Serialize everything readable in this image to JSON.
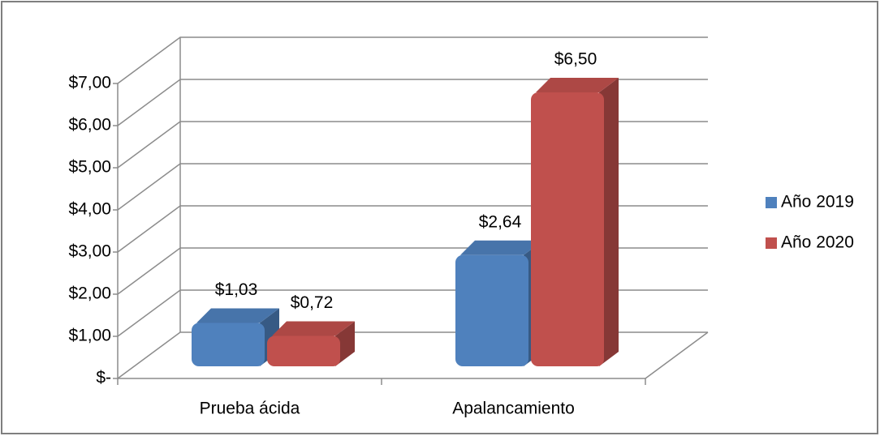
{
  "chart_data": {
    "type": "bar3d",
    "categories": [
      "Prueba ácida",
      "Apalancamiento"
    ],
    "series": [
      {
        "name": "Año 2019",
        "color": "#4f81bd",
        "values": [
          1.03,
          2.64
        ],
        "value_labels": [
          "$1,03",
          "$2,64"
        ]
      },
      {
        "name": "Año 2020",
        "color": "#c0504d",
        "values": [
          0.72,
          6.5
        ],
        "value_labels": [
          "$0,72",
          "$6,50"
        ]
      }
    ],
    "ylim": [
      0,
      7
    ],
    "yticks": [
      {
        "value": 0,
        "label": "$-"
      },
      {
        "value": 1,
        "label": "$1,00"
      },
      {
        "value": 2,
        "label": "$2,00"
      },
      {
        "value": 3,
        "label": "$3,00"
      },
      {
        "value": 4,
        "label": "$4,00"
      },
      {
        "value": 5,
        "label": "$5,00"
      },
      {
        "value": 6,
        "label": "$6,00"
      },
      {
        "value": 7,
        "label": "$7,00"
      }
    ],
    "grid": true,
    "legend": "right"
  }
}
